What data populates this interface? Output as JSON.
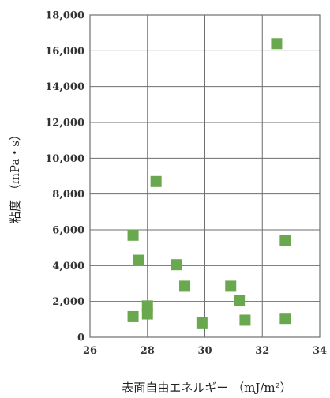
{
  "chart_data": {
    "type": "scatter",
    "xlabel": "表面自由エネルギー （mJ/m²）",
    "ylabel": "粘度 （mPa・s）",
    "xlim": [
      26,
      34
    ],
    "ylim": [
      0,
      18000
    ],
    "x_ticks": [
      26,
      28,
      30,
      32,
      34
    ],
    "x_tick_labels": [
      "26",
      "28",
      "30",
      "32",
      "34"
    ],
    "y_ticks": [
      0,
      2000,
      4000,
      6000,
      8000,
      10000,
      12000,
      14000,
      16000,
      18000
    ],
    "y_tick_labels": [
      "0",
      "2,000",
      "4,000",
      "6,000",
      "8,000",
      "10,000",
      "12,000",
      "14,000",
      "16,000",
      "18,000"
    ],
    "grid": true,
    "marker_color": "#6aa84f",
    "marker_shape": "square",
    "points": [
      {
        "x": 27.5,
        "y": 5700
      },
      {
        "x": 27.7,
        "y": 4300
      },
      {
        "x": 27.5,
        "y": 1150
      },
      {
        "x": 28.0,
        "y": 1300
      },
      {
        "x": 28.0,
        "y": 1750
      },
      {
        "x": 28.3,
        "y": 8700
      },
      {
        "x": 29.0,
        "y": 4050
      },
      {
        "x": 29.3,
        "y": 2850
      },
      {
        "x": 29.9,
        "y": 800
      },
      {
        "x": 30.9,
        "y": 2850
      },
      {
        "x": 31.2,
        "y": 2050
      },
      {
        "x": 31.4,
        "y": 950
      },
      {
        "x": 32.5,
        "y": 16400
      },
      {
        "x": 32.8,
        "y": 5400
      },
      {
        "x": 32.8,
        "y": 1050
      }
    ]
  }
}
